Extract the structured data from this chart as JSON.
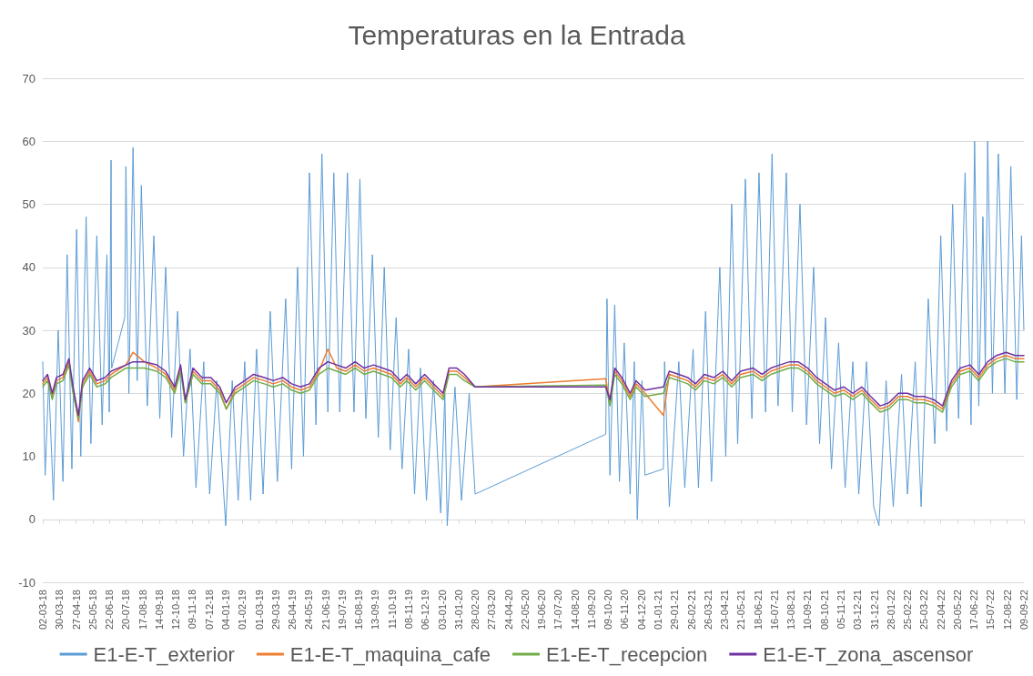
{
  "chart_data": {
    "type": "line",
    "title": "Temperaturas en la Entrada",
    "x": [
      "2018-03-02",
      "2018-03-10",
      "2018-03-18",
      "2018-03-25",
      "2018-04-05",
      "2018-04-15",
      "2018-04-22",
      "2018-05-01",
      "2018-05-08",
      "2018-05-20",
      "2018-06-01",
      "2018-06-15",
      "2018-06-25",
      "2018-07-20",
      "2018-08-01",
      "2018-08-20",
      "2018-09-10",
      "2018-09-25",
      "2018-10-10",
      "2018-10-20",
      "2018-10-28",
      "2018-11-10",
      "2018-11-25",
      "2018-12-10",
      "2018-12-25",
      "2019-01-05",
      "2019-01-20",
      "2019-02-05",
      "2019-02-20",
      "2019-03-10",
      "2019-03-25",
      "2019-04-10",
      "2019-04-25",
      "2019-05-10",
      "2019-05-25",
      "2019-06-10",
      "2019-06-25",
      "2019-07-10",
      "2019-07-25",
      "2019-08-10",
      "2019-08-25",
      "2019-09-10",
      "2019-09-25",
      "2019-10-10",
      "2019-10-25",
      "2019-11-05",
      "2019-11-20",
      "2019-12-05",
      "2019-12-20",
      "2020-01-05",
      "2020-01-15",
      "2020-01-28",
      "2020-02-10",
      "2020-02-28",
      "2020-10-05",
      "2020-10-12",
      "2020-10-20",
      "2020-11-01",
      "2020-11-15",
      "2020-11-25",
      "2020-12-05",
      "2020-12-10",
      "2021-01-10",
      "2021-01-20",
      "2021-02-05",
      "2021-02-20",
      "2021-03-05",
      "2021-03-20",
      "2021-04-05",
      "2021-04-20",
      "2021-05-05",
      "2021-05-20",
      "2021-06-10",
      "2021-06-25",
      "2021-07-10",
      "2021-07-25",
      "2021-08-10",
      "2021-08-25",
      "2021-09-10",
      "2021-09-25",
      "2021-10-10",
      "2021-10-25",
      "2021-11-10",
      "2021-11-25",
      "2021-12-10",
      "2021-12-25",
      "2022-01-10",
      "2022-01-25",
      "2022-02-10",
      "2022-02-25",
      "2022-03-10",
      "2022-03-25",
      "2022-04-10",
      "2022-04-25",
      "2022-05-10",
      "2022-05-25",
      "2022-06-10",
      "2022-06-25",
      "2022-07-10",
      "2022-07-25",
      "2022-08-10",
      "2022-08-25",
      "2022-09-09"
    ],
    "series": [
      {
        "name": "E1-E-T_exterior",
        "color": "#5b9bd5",
        "x": [
          "2018-03-02",
          "2018-03-06",
          "2018-03-12",
          "2018-03-20",
          "2018-03-28",
          "2018-04-05",
          "2018-04-12",
          "2018-04-20",
          "2018-04-28",
          "2018-05-05",
          "2018-05-14",
          "2018-05-22",
          "2018-06-01",
          "2018-06-10",
          "2018-06-18",
          "2018-06-22",
          "2018-06-25",
          "2018-06-26",
          "2018-07-18",
          "2018-07-20",
          "2018-07-25",
          "2018-08-01",
          "2018-08-08",
          "2018-08-15",
          "2018-08-25",
          "2018-09-05",
          "2018-09-15",
          "2018-09-25",
          "2018-10-05",
          "2018-10-15",
          "2018-10-25",
          "2018-11-05",
          "2018-11-15",
          "2018-11-28",
          "2018-12-08",
          "2018-12-20",
          "2019-01-04",
          "2019-01-15",
          "2019-01-25",
          "2019-02-05",
          "2019-02-15",
          "2019-02-25",
          "2019-03-08",
          "2019-03-20",
          "2019-04-01",
          "2019-04-15",
          "2019-04-25",
          "2019-05-05",
          "2019-05-15",
          "2019-05-25",
          "2019-06-05",
          "2019-06-15",
          "2019-06-25",
          "2019-07-05",
          "2019-07-15",
          "2019-07-28",
          "2019-08-08",
          "2019-08-18",
          "2019-08-28",
          "2019-09-08",
          "2019-09-18",
          "2019-09-28",
          "2019-10-08",
          "2019-10-18",
          "2019-10-28",
          "2019-11-08",
          "2019-11-18",
          "2019-11-28",
          "2019-12-08",
          "2019-12-20",
          "2020-01-01",
          "2020-01-08",
          "2020-01-12",
          "2020-01-25",
          "2020-02-05",
          "2020-02-18",
          "2020-02-28",
          "2020-10-05",
          "2020-10-07",
          "2020-10-12",
          "2020-10-20",
          "2020-10-28",
          "2020-11-05",
          "2020-11-15",
          "2020-11-22",
          "2020-11-27",
          "2020-12-05",
          "2020-12-10",
          "2021-01-10",
          "2021-01-12",
          "2021-01-20",
          "2021-02-05",
          "2021-02-15",
          "2021-03-01",
          "2021-03-10",
          "2021-03-22",
          "2021-04-01",
          "2021-04-15",
          "2021-04-25",
          "2021-05-05",
          "2021-05-15",
          "2021-05-28",
          "2021-06-08",
          "2021-06-20",
          "2021-07-01",
          "2021-07-12",
          "2021-07-22",
          "2021-08-05",
          "2021-08-15",
          "2021-08-28",
          "2021-09-08",
          "2021-09-20",
          "2021-09-30",
          "2021-10-10",
          "2021-10-20",
          "2021-11-01",
          "2021-11-12",
          "2021-11-25",
          "2021-12-05",
          "2021-12-18",
          "2021-12-30",
          "2022-01-08",
          "2022-01-20",
          "2022-02-01",
          "2022-02-15",
          "2022-02-25",
          "2022-03-10",
          "2022-03-20",
          "2022-04-01",
          "2022-04-12",
          "2022-04-22",
          "2022-05-02",
          "2022-05-12",
          "2022-05-22",
          "2022-06-02",
          "2022-06-12",
          "2022-06-18",
          "2022-06-25",
          "2022-07-02",
          "2022-07-06",
          "2022-07-10",
          "2022-07-18",
          "2022-07-28",
          "2022-08-08",
          "2022-08-18",
          "2022-08-28",
          "2022-09-05",
          "2022-09-09"
        ],
        "values": [
          25,
          7,
          22,
          3,
          30,
          6,
          42,
          8,
          46,
          10,
          48,
          12,
          45,
          15,
          42,
          17,
          57,
          24,
          32,
          56,
          20,
          59,
          22,
          53,
          18,
          45,
          16,
          40,
          13,
          33,
          10,
          27,
          5,
          25,
          4,
          22,
          -1,
          22,
          3,
          25,
          3,
          27,
          4,
          33,
          6,
          35,
          8,
          40,
          10,
          55,
          15,
          58,
          17,
          55,
          17,
          55,
          17,
          54,
          16,
          42,
          13,
          40,
          11,
          32,
          8,
          27,
          4,
          24,
          3,
          22,
          1,
          20,
          -1,
          21,
          3,
          20,
          4,
          13.5,
          35,
          7,
          34,
          6,
          28,
          4,
          25,
          0,
          22,
          7,
          8,
          25,
          2,
          25,
          5,
          27,
          5,
          33,
          6,
          40,
          10,
          50,
          12,
          54,
          16,
          55,
          17,
          58,
          18,
          55,
          17,
          50,
          15,
          40,
          12,
          32,
          8,
          28,
          5,
          25,
          4,
          25,
          2,
          -1,
          22,
          2,
          23,
          4,
          25,
          2,
          35,
          12,
          45,
          14,
          50,
          16,
          55,
          15,
          60,
          18,
          48,
          24,
          60,
          20,
          58,
          20,
          56,
          19,
          45,
          30
        ]
      },
      {
        "name": "E1-E-T_maquina_cafe",
        "color": "#ed7d31",
        "values": [
          21.5,
          22.5,
          19.5,
          22,
          22.5,
          25,
          20.5,
          15.5,
          21.5,
          23.5,
          21.5,
          22,
          23,
          24.5,
          26.5,
          25,
          24,
          23,
          20.5,
          24,
          18.5,
          23.5,
          22,
          22,
          20.5,
          17.5,
          20.5,
          21.5,
          22.5,
          22,
          21.5,
          22,
          21,
          20.5,
          21,
          23.5,
          27,
          24,
          23.5,
          24.5,
          23.5,
          24,
          23.5,
          23,
          21.5,
          22.5,
          21,
          22.5,
          21,
          19.5,
          23.5,
          23.5,
          22.5,
          21,
          22.3,
          18.5,
          23.5,
          22,
          19.5,
          21.5,
          20.5,
          20,
          16.5,
          23,
          22.5,
          22,
          21,
          22.5,
          22,
          23,
          21.5,
          23,
          23.5,
          22.5,
          23.5,
          24,
          24.5,
          24.5,
          23.5,
          22,
          21,
          20,
          20.5,
          19.5,
          20.5,
          19,
          17.5,
          18,
          19.5,
          19.5,
          19,
          19,
          18.5,
          17.5,
          21.5,
          23.5,
          24,
          22.5,
          24.5,
          25.5,
          26,
          25.5,
          25.5
        ]
      },
      {
        "name": "E1-E-T_recepcion",
        "color": "#70ad47",
        "values": [
          21,
          22,
          19,
          21.5,
          22,
          24.5,
          20,
          16,
          21,
          23,
          21,
          21.5,
          22.5,
          24,
          24,
          24,
          23.5,
          22.5,
          20,
          23.5,
          18.5,
          23,
          21.5,
          21.5,
          20,
          17.5,
          20,
          21,
          22,
          21.5,
          21,
          21.5,
          20.5,
          20,
          20.5,
          23,
          24,
          23.5,
          23,
          24,
          23,
          23.5,
          23,
          22.5,
          21,
          22,
          20.5,
          22,
          20.5,
          19,
          23,
          23,
          22,
          21,
          21.3,
          18,
          23,
          21.5,
          19,
          21,
          20,
          19.5,
          20,
          22.5,
          22,
          21.5,
          20.5,
          22,
          21.5,
          22.5,
          21,
          22.5,
          23,
          22,
          23,
          23.5,
          24,
          24,
          23,
          21.5,
          20.5,
          19.5,
          20,
          19,
          20,
          18.5,
          17,
          17.5,
          19,
          19,
          18.5,
          18.5,
          18,
          17,
          21,
          23,
          23.5,
          22,
          24,
          25,
          25.5,
          25,
          25
        ]
      },
      {
        "name": "E1-E-T_zona_ascensor",
        "color": "#7030a0",
        "values": [
          22,
          23,
          20,
          22.5,
          23,
          25.5,
          21,
          16.5,
          22,
          24,
          22,
          22.5,
          23.5,
          24.5,
          25,
          25,
          24.5,
          23.5,
          21,
          24.5,
          19,
          24,
          22.5,
          22.5,
          21,
          18.5,
          21,
          22,
          23,
          22.5,
          22,
          22.5,
          21.5,
          21,
          21.5,
          24,
          25,
          24.5,
          24,
          25,
          24,
          24.5,
          24,
          23.5,
          22,
          23,
          21.5,
          23,
          21.5,
          20,
          24,
          24,
          23,
          21,
          21,
          19,
          24,
          22.5,
          20,
          22,
          21,
          20.5,
          21,
          23.5,
          23,
          22.5,
          21.5,
          23,
          22.5,
          23.5,
          22,
          23.5,
          24,
          23,
          24,
          24.5,
          25,
          25,
          24,
          22.5,
          21.5,
          20.5,
          21,
          20,
          21,
          19.5,
          18,
          18.5,
          20,
          20,
          19.5,
          19.5,
          19,
          18,
          22,
          24,
          24.5,
          23,
          25,
          26,
          26.5,
          26,
          26
        ]
      }
    ],
    "xlim": [
      "2018-03-02",
      "2022-09-09"
    ],
    "xticks": [
      {
        "value": "2018-03-02",
        "label": "02-03-18"
      },
      {
        "value": "2018-03-30",
        "label": "30-03-18"
      },
      {
        "value": "2018-04-27",
        "label": "27-04-18"
      },
      {
        "value": "2018-05-25",
        "label": "25-05-18"
      },
      {
        "value": "2018-06-22",
        "label": "22-06-18"
      },
      {
        "value": "2018-07-20",
        "label": "20-07-18"
      },
      {
        "value": "2018-08-17",
        "label": "17-08-18"
      },
      {
        "value": "2018-09-14",
        "label": "14-09-18"
      },
      {
        "value": "2018-10-12",
        "label": "12-10-18"
      },
      {
        "value": "2018-11-09",
        "label": "09-11-18"
      },
      {
        "value": "2018-12-07",
        "label": "07-12-18"
      },
      {
        "value": "2019-01-04",
        "label": "04-01-19"
      },
      {
        "value": "2019-02-01",
        "label": "01-02-19"
      },
      {
        "value": "2019-03-01",
        "label": "01-03-19"
      },
      {
        "value": "2019-03-29",
        "label": "29-03-19"
      },
      {
        "value": "2019-04-26",
        "label": "26-04-19"
      },
      {
        "value": "2019-05-24",
        "label": "24-05-19"
      },
      {
        "value": "2019-06-21",
        "label": "21-06-19"
      },
      {
        "value": "2019-07-19",
        "label": "19-07-19"
      },
      {
        "value": "2019-08-16",
        "label": "16-08-19"
      },
      {
        "value": "2019-09-13",
        "label": "13-09-19"
      },
      {
        "value": "2019-10-11",
        "label": "11-10-19"
      },
      {
        "value": "2019-11-08",
        "label": "08-11-19"
      },
      {
        "value": "2019-12-06",
        "label": "06-12-19"
      },
      {
        "value": "2020-01-03",
        "label": "03-01-20"
      },
      {
        "value": "2020-01-31",
        "label": "31-01-20"
      },
      {
        "value": "2020-02-28",
        "label": "28-02-20"
      },
      {
        "value": "2020-03-27",
        "label": "27-03-20"
      },
      {
        "value": "2020-04-24",
        "label": "24-04-20"
      },
      {
        "value": "2020-05-22",
        "label": "22-05-20"
      },
      {
        "value": "2020-06-19",
        "label": "19-06-20"
      },
      {
        "value": "2020-07-17",
        "label": "17-07-20"
      },
      {
        "value": "2020-08-14",
        "label": "14-08-20"
      },
      {
        "value": "2020-09-11",
        "label": "11-09-20"
      },
      {
        "value": "2020-10-09",
        "label": "09-10-20"
      },
      {
        "value": "2020-11-06",
        "label": "06-11-20"
      },
      {
        "value": "2020-12-04",
        "label": "04-12-20"
      },
      {
        "value": "2021-01-01",
        "label": "01-01-21"
      },
      {
        "value": "2021-01-29",
        "label": "29-01-21"
      },
      {
        "value": "2021-02-26",
        "label": "26-02-21"
      },
      {
        "value": "2021-03-26",
        "label": "26-03-21"
      },
      {
        "value": "2021-04-23",
        "label": "23-04-21"
      },
      {
        "value": "2021-05-21",
        "label": "21-05-21"
      },
      {
        "value": "2021-06-18",
        "label": "18-06-21"
      },
      {
        "value": "2021-07-16",
        "label": "16-07-21"
      },
      {
        "value": "2021-08-13",
        "label": "13-08-21"
      },
      {
        "value": "2021-09-10",
        "label": "10-09-21"
      },
      {
        "value": "2021-10-08",
        "label": "08-10-21"
      },
      {
        "value": "2021-11-05",
        "label": "05-11-21"
      },
      {
        "value": "2021-12-03",
        "label": "03-12-21"
      },
      {
        "value": "2021-12-31",
        "label": "31-12-21"
      },
      {
        "value": "2022-01-28",
        "label": "28-01-22"
      },
      {
        "value": "2022-02-25",
        "label": "25-02-22"
      },
      {
        "value": "2022-03-25",
        "label": "25-03-22"
      },
      {
        "value": "2022-04-22",
        "label": "22-04-22"
      },
      {
        "value": "2022-05-20",
        "label": "20-05-22"
      },
      {
        "value": "2022-06-17",
        "label": "17-06-22"
      },
      {
        "value": "2022-07-15",
        "label": "15-07-22"
      },
      {
        "value": "2022-08-12",
        "label": "12-08-22"
      },
      {
        "value": "2022-09-09",
        "label": "09-09-22"
      }
    ],
    "ylim": [
      -10,
      70
    ],
    "yticks": [
      -10,
      0,
      10,
      20,
      30,
      40,
      50,
      60,
      70
    ],
    "grid": "y",
    "legend": "bottom",
    "marker": "none",
    "line_style": "solid"
  }
}
